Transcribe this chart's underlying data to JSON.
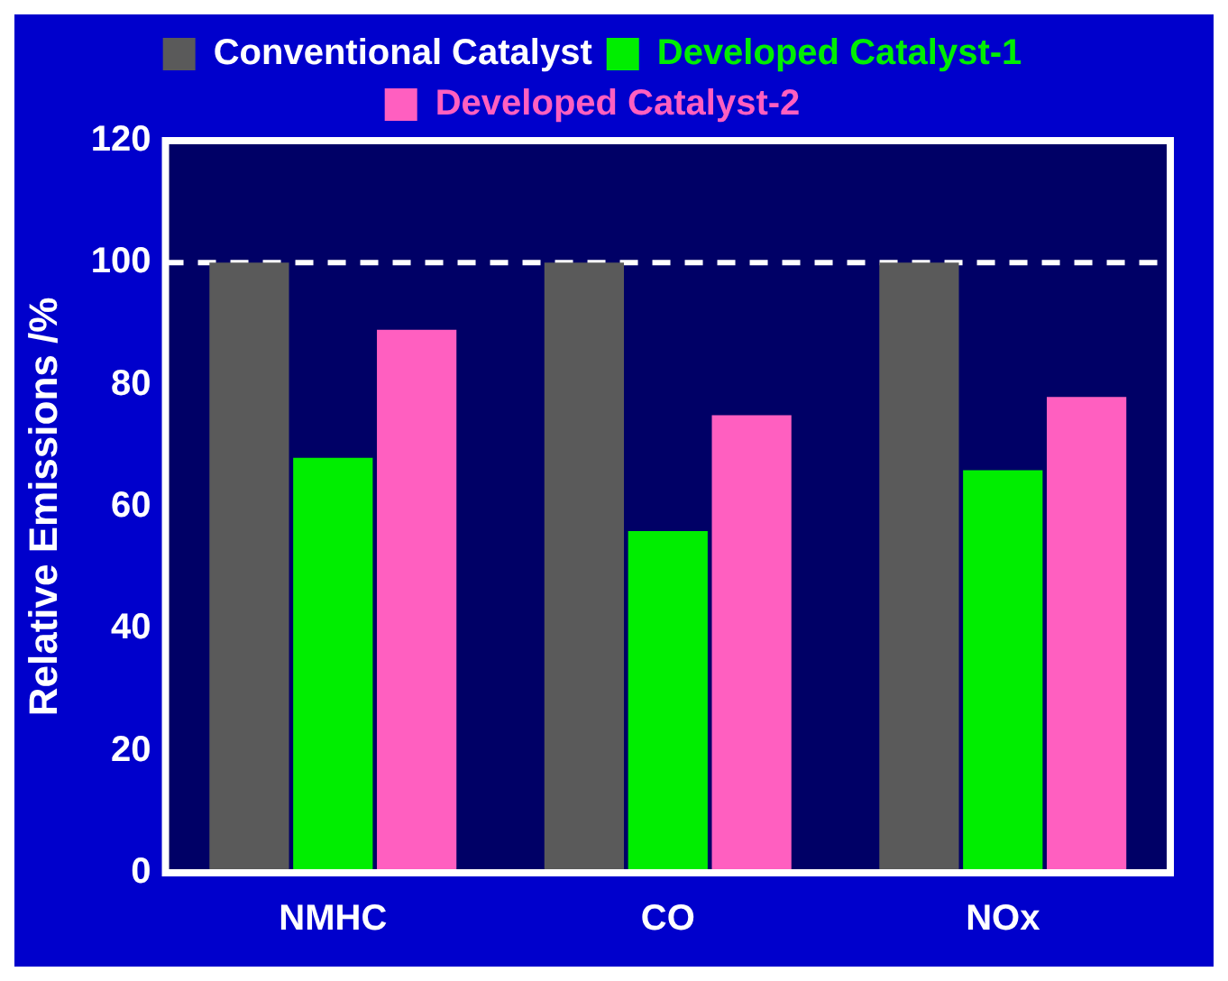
{
  "chart_data": {
    "type": "bar",
    "categories": [
      "NMHC",
      "CO",
      "NOx"
    ],
    "series": [
      {
        "name": "Conventional Catalyst",
        "color": "#5a5a5a",
        "values": [
          100,
          100,
          100
        ]
      },
      {
        "name": "Developed Catalyst-1",
        "color": "#00ee00",
        "values": [
          68,
          56,
          66
        ]
      },
      {
        "name": "Developed Catalyst-2",
        "color": "#ff5fc0",
        "values": [
          89,
          75,
          78
        ]
      }
    ],
    "ylabel": "Relative Emissions /%",
    "ylim": [
      0,
      120
    ],
    "yticks": [
      0,
      20,
      40,
      60,
      80,
      100,
      120
    ],
    "legend": "top",
    "ref_lines": [
      {
        "axis": "y",
        "value": 100,
        "color": "#ffffff",
        "line_style": "dashed"
      }
    ]
  }
}
